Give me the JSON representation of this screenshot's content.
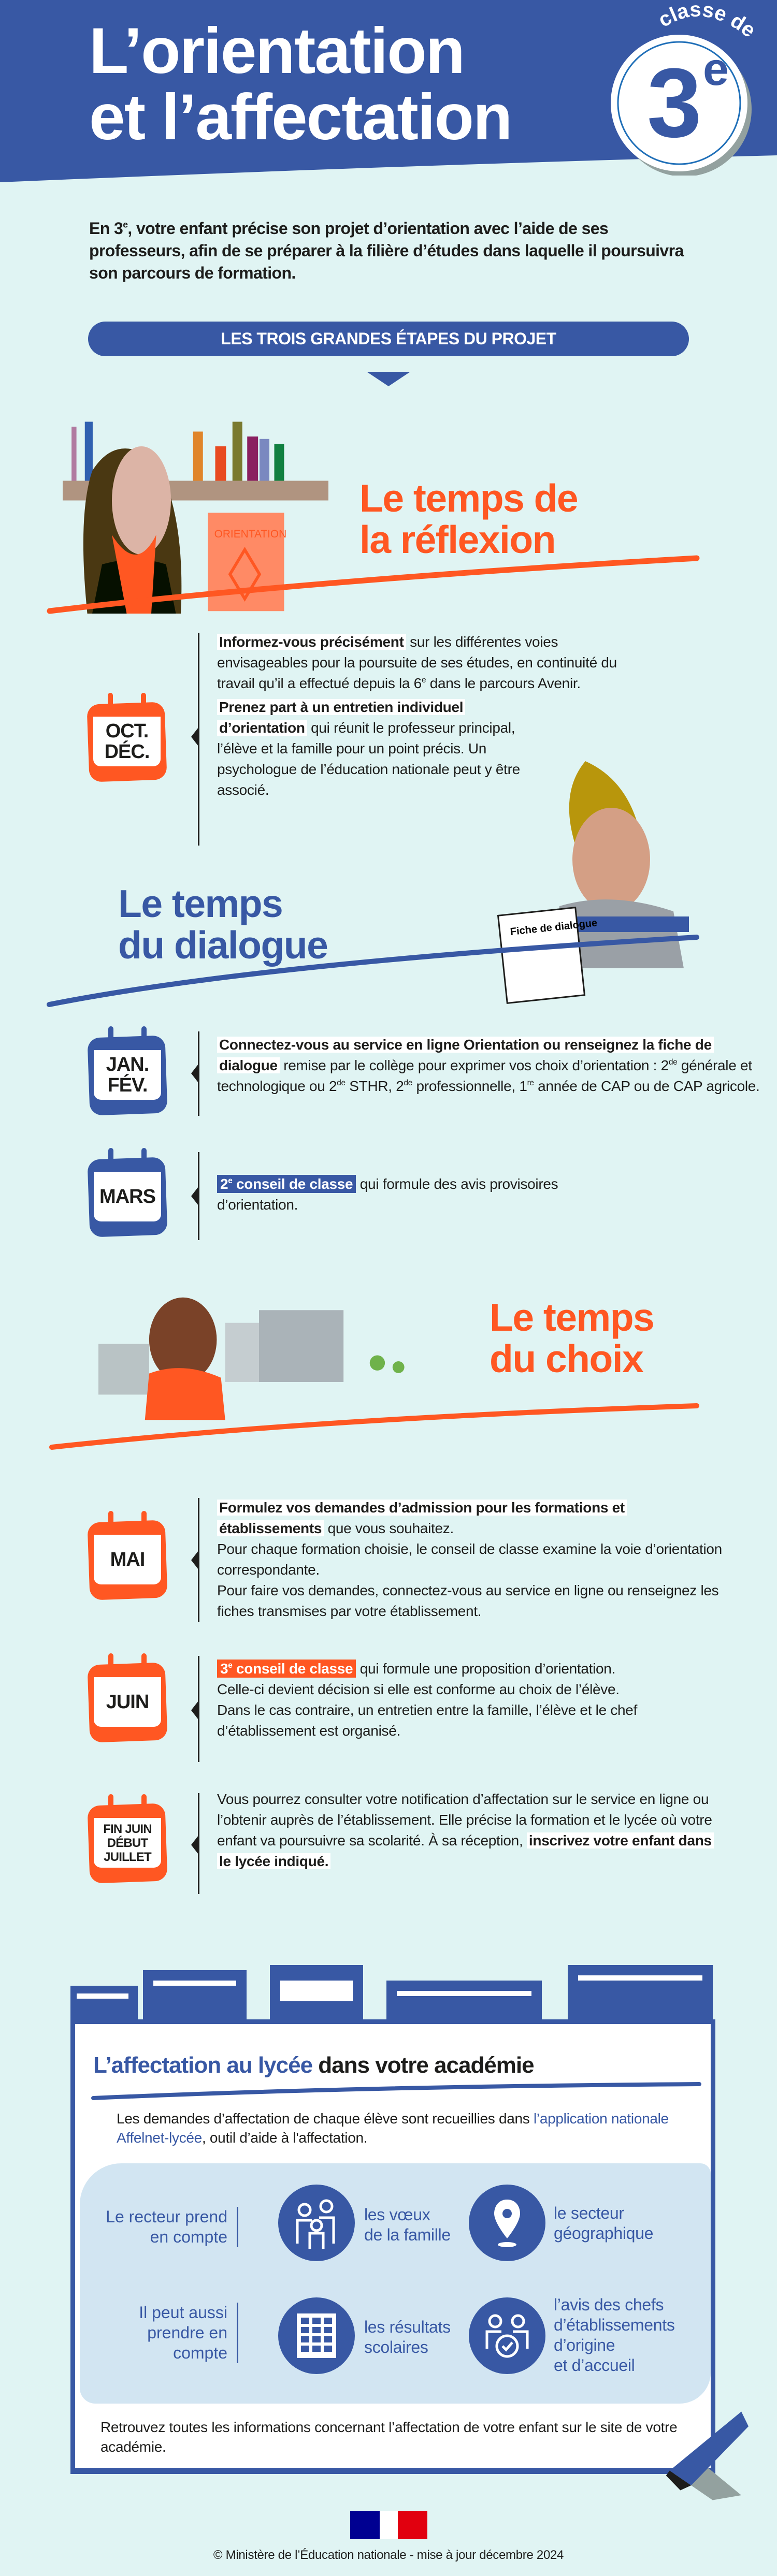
{
  "colors": {
    "blue": "#3858a4",
    "orange": "#ff5722",
    "background": "#e0f4f3",
    "light_band": "#d2e5f2"
  },
  "header": {
    "title_line1": "L’orientation",
    "title_line2": "et l’affectation",
    "badge_arc": "classe de",
    "badge_number": "3",
    "badge_sup": "e"
  },
  "intro": {
    "a": "En 3",
    "sup": "e",
    "b": ", votre enfant précise son projet d’orientation avec l’aide de ses professeurs, afin de se préparer à la filière d’études dans laquelle il poursuivra son parcours de formation."
  },
  "steps_banner": "LES TROIS GRANDES ÉTAPES DU PROJET",
  "reflexion": {
    "title_line1": "Le temps de",
    "title_line2": "la réflexion",
    "book_label": "ORIENTATION",
    "event": {
      "calendar": [
        "OCT.",
        "DÉC."
      ],
      "color": "#ff5722",
      "p1_bold": "Informez-vous précisément",
      "p1_rest": " sur les différentes voies envisageables pour la poursuite de ses études, en continuité du travail qu’il a effectué depuis la 6",
      "p1_sup": "e",
      "p1_end": " dans le parcours Avenir.",
      "p2_bold": "Prenez part à un entretien individuel d’orientation",
      "p2_rest": " qui réunit le professeur principal, l’élève et la famille pour un point précis. Un psychologue de l’éducation nationale peut y être associé."
    }
  },
  "dialogue": {
    "title_line1": "Le temps",
    "title_line2": "du dialogue",
    "sheet_label": "Fiche de dialogue",
    "events": [
      {
        "calendar": [
          "JAN.",
          "FÉV."
        ],
        "color": "#3858a4",
        "bold": "Connectez-vous au service en ligne Orientation ou renseignez la fiche de dialogue",
        "t1": " remise par le collège pour exprimer vos choix d’orientation : 2",
        "s1": "de",
        "t2": " générale et technologique ou 2",
        "s2": "de",
        "t3": " STHR, 2",
        "s3": "de",
        "t4": " professionnelle, 1",
        "s4": "re",
        "t5": " année de CAP ou de CAP agricole."
      },
      {
        "calendar": [
          "MARS"
        ],
        "color": "#3858a4",
        "hl_a": "2",
        "hl_sup": "e",
        "hl_b": " conseil de classe",
        "rest": " qui formule des avis provisoires d’orientation."
      }
    ]
  },
  "choix": {
    "title_line1": "Le temps",
    "title_line2": "du choix",
    "events": [
      {
        "calendar": [
          "MAI"
        ],
        "color": "#ff5722",
        "bold": "Formulez vos demandes d’admission pour les formations et établissements",
        "rest": " que vous souhaitez.",
        "l2": "Pour chaque formation choisie, le conseil de classe examine la voie d’orientation correspondante.",
        "l3": "Pour faire vos demandes, connectez-vous au service en ligne ou renseignez les fiches transmises par votre établissement."
      },
      {
        "calendar": [
          "JUIN"
        ],
        "color": "#ff5722",
        "hl_a": "3",
        "hl_sup": "e",
        "hl_b": " conseil de classe",
        "rest": " qui formule une proposition d’orientation. Celle-ci devient décision si elle est conforme au choix de l’élève. Dans le cas contraire, un entretien entre la famille, l’élève et le chef d’établissement est organisé."
      },
      {
        "calendar": [
          "FIN JUIN",
          "DÉBUT",
          "JUILLET"
        ],
        "color": "#ff5722",
        "rest": "Vous pourrez consulter votre notification d’affectation sur le service en ligne ou l’obtenir auprès de l’établissement. Elle précise la formation et le lycée où votre enfant va poursuivre sa scolarité. À sa réception, ",
        "bold": "inscrivez votre enfant dans le lycée indiqué."
      }
    ]
  },
  "affectation": {
    "title_blue": "L’affectation au lycée",
    "title_black": " dans votre académie",
    "intro_a": "Les demandes d’affectation de chaque élève sont recueillies dans ",
    "intro_link": "l’application nationale Affelnet-lycée",
    "intro_b": ", outil d’aide à l'affectation.",
    "rows": [
      {
        "label": "Le recteur prend en compte",
        "items": [
          {
            "icon": "family-icon",
            "text_lines": [
              "les vœux",
              "de la famille"
            ]
          },
          {
            "icon": "location-pin-icon",
            "text_lines": [
              "le secteur",
              "géographique"
            ]
          }
        ]
      },
      {
        "label": "Il peut aussi prendre en compte",
        "items": [
          {
            "icon": "grades-table-icon",
            "text_lines": [
              "les résultats",
              "scolaires"
            ]
          },
          {
            "icon": "approved-people-icon",
            "text_lines": [
              "l’avis des chefs",
              "d’établissements",
              "d’origine",
              "et d’accueil"
            ]
          }
        ]
      }
    ],
    "closing": "Retrouvez toutes les informations concernant l’affectation de votre enfant sur le site de votre académie."
  },
  "footer": {
    "logo": "République française",
    "copyright": "© Ministère de l’Éducation nationale - mise à jour décembre 2024"
  }
}
